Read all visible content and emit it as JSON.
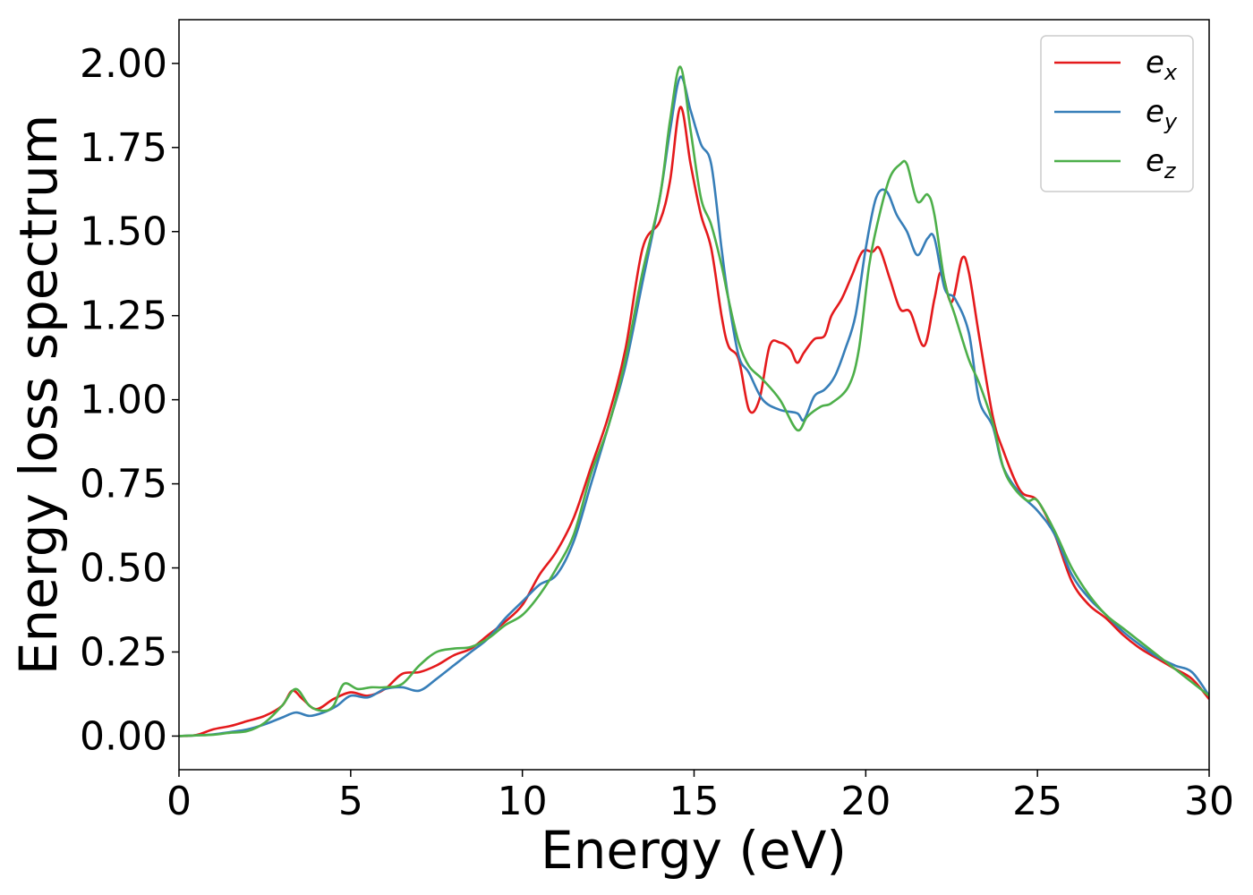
{
  "chart_data": {
    "type": "line",
    "title": "",
    "xlabel": "Energy (eV)",
    "ylabel": "Energy loss spectrum",
    "xlim": [
      0,
      30
    ],
    "ylim": [
      -0.1,
      2.13
    ],
    "xticks": [
      0,
      5,
      10,
      15,
      20,
      25,
      30
    ],
    "yticks": [
      0.0,
      0.25,
      0.5,
      0.75,
      1.0,
      1.25,
      1.5,
      1.75,
      2.0
    ],
    "xtick_labels": [
      "0",
      "5",
      "10",
      "15",
      "20",
      "25",
      "30"
    ],
    "ytick_labels": [
      "0.00",
      "0.25",
      "0.50",
      "0.75",
      "1.00",
      "1.25",
      "1.50",
      "1.75",
      "2.00"
    ],
    "grid": false,
    "legend_position": "top-right",
    "series": [
      {
        "name": "e",
        "sub": "x",
        "color": "#e41a1c",
        "points": [
          [
            0,
            0
          ],
          [
            0.5,
            0.003
          ],
          [
            1.0,
            0.02
          ],
          [
            1.5,
            0.03
          ],
          [
            2.0,
            0.045
          ],
          [
            2.5,
            0.06
          ],
          [
            3.0,
            0.09
          ],
          [
            3.3,
            0.135
          ],
          [
            3.6,
            0.11
          ],
          [
            4.0,
            0.08
          ],
          [
            4.5,
            0.11
          ],
          [
            5.0,
            0.13
          ],
          [
            5.5,
            0.12
          ],
          [
            6.0,
            0.14
          ],
          [
            6.5,
            0.185
          ],
          [
            7.0,
            0.19
          ],
          [
            7.5,
            0.21
          ],
          [
            8.0,
            0.24
          ],
          [
            8.5,
            0.26
          ],
          [
            9.0,
            0.3
          ],
          [
            9.5,
            0.34
          ],
          [
            10.0,
            0.39
          ],
          [
            10.5,
            0.48
          ],
          [
            11.0,
            0.55
          ],
          [
            11.5,
            0.65
          ],
          [
            12.0,
            0.8
          ],
          [
            12.5,
            0.95
          ],
          [
            13.0,
            1.15
          ],
          [
            13.5,
            1.45
          ],
          [
            14.0,
            1.53
          ],
          [
            14.3,
            1.65
          ],
          [
            14.6,
            1.87
          ],
          [
            14.9,
            1.7
          ],
          [
            15.2,
            1.55
          ],
          [
            15.5,
            1.45
          ],
          [
            15.8,
            1.25
          ],
          [
            16.0,
            1.16
          ],
          [
            16.3,
            1.12
          ],
          [
            16.6,
            0.97
          ],
          [
            16.9,
            1.0
          ],
          [
            17.2,
            1.16
          ],
          [
            17.5,
            1.17
          ],
          [
            17.8,
            1.15
          ],
          [
            18.0,
            1.11
          ],
          [
            18.2,
            1.14
          ],
          [
            18.5,
            1.18
          ],
          [
            18.8,
            1.19
          ],
          [
            19.0,
            1.25
          ],
          [
            19.3,
            1.3
          ],
          [
            19.6,
            1.37
          ],
          [
            19.9,
            1.44
          ],
          [
            20.2,
            1.44
          ],
          [
            20.4,
            1.45
          ],
          [
            20.7,
            1.36
          ],
          [
            21.0,
            1.27
          ],
          [
            21.3,
            1.26
          ],
          [
            21.7,
            1.16
          ],
          [
            22.0,
            1.3
          ],
          [
            22.2,
            1.38
          ],
          [
            22.5,
            1.29
          ],
          [
            22.8,
            1.42
          ],
          [
            23.0,
            1.38
          ],
          [
            23.3,
            1.19
          ],
          [
            23.7,
            0.95
          ],
          [
            24.0,
            0.85
          ],
          [
            24.5,
            0.73
          ],
          [
            25.0,
            0.7
          ],
          [
            25.5,
            0.6
          ],
          [
            26.0,
            0.46
          ],
          [
            26.5,
            0.39
          ],
          [
            27.0,
            0.35
          ],
          [
            27.5,
            0.3
          ],
          [
            28.0,
            0.26
          ],
          [
            28.5,
            0.23
          ],
          [
            29.0,
            0.2
          ],
          [
            29.5,
            0.17
          ],
          [
            30.0,
            0.11
          ]
        ]
      },
      {
        "name": "e",
        "sub": "y",
        "color": "#377eb8",
        "points": [
          [
            0,
            0
          ],
          [
            0.5,
            0.002
          ],
          [
            1.0,
            0.005
          ],
          [
            1.5,
            0.012
          ],
          [
            2.0,
            0.02
          ],
          [
            2.5,
            0.035
          ],
          [
            3.0,
            0.055
          ],
          [
            3.4,
            0.07
          ],
          [
            3.8,
            0.06
          ],
          [
            4.2,
            0.07
          ],
          [
            4.6,
            0.09
          ],
          [
            5.0,
            0.12
          ],
          [
            5.5,
            0.115
          ],
          [
            6.0,
            0.14
          ],
          [
            6.5,
            0.145
          ],
          [
            7.0,
            0.135
          ],
          [
            7.5,
            0.17
          ],
          [
            8.0,
            0.21
          ],
          [
            8.5,
            0.25
          ],
          [
            9.0,
            0.29
          ],
          [
            9.5,
            0.35
          ],
          [
            10.0,
            0.4
          ],
          [
            10.5,
            0.45
          ],
          [
            11.0,
            0.48
          ],
          [
            11.5,
            0.58
          ],
          [
            12.0,
            0.75
          ],
          [
            12.5,
            0.92
          ],
          [
            13.0,
            1.1
          ],
          [
            13.5,
            1.35
          ],
          [
            14.0,
            1.6
          ],
          [
            14.3,
            1.8
          ],
          [
            14.6,
            1.96
          ],
          [
            14.9,
            1.86
          ],
          [
            15.2,
            1.76
          ],
          [
            15.5,
            1.7
          ],
          [
            15.8,
            1.45
          ],
          [
            16.0,
            1.3
          ],
          [
            16.3,
            1.13
          ],
          [
            16.6,
            1.08
          ],
          [
            17.0,
            1.0
          ],
          [
            17.5,
            0.97
          ],
          [
            18.0,
            0.96
          ],
          [
            18.2,
            0.94
          ],
          [
            18.5,
            1.01
          ],
          [
            18.8,
            1.03
          ],
          [
            19.1,
            1.07
          ],
          [
            19.4,
            1.15
          ],
          [
            19.7,
            1.25
          ],
          [
            20.0,
            1.45
          ],
          [
            20.3,
            1.6
          ],
          [
            20.6,
            1.62
          ],
          [
            20.9,
            1.55
          ],
          [
            21.2,
            1.5
          ],
          [
            21.5,
            1.43
          ],
          [
            21.8,
            1.48
          ],
          [
            22.0,
            1.48
          ],
          [
            22.3,
            1.33
          ],
          [
            22.6,
            1.3
          ],
          [
            23.0,
            1.2
          ],
          [
            23.3,
            1.0
          ],
          [
            23.7,
            0.92
          ],
          [
            24.0,
            0.8
          ],
          [
            24.5,
            0.72
          ],
          [
            25.0,
            0.67
          ],
          [
            25.5,
            0.6
          ],
          [
            26.0,
            0.48
          ],
          [
            26.5,
            0.41
          ],
          [
            27.0,
            0.36
          ],
          [
            27.5,
            0.31
          ],
          [
            28.0,
            0.27
          ],
          [
            28.5,
            0.235
          ],
          [
            29.0,
            0.21
          ],
          [
            29.5,
            0.19
          ],
          [
            30.0,
            0.12
          ]
        ]
      },
      {
        "name": "e",
        "sub": "z",
        "color": "#4daf4a",
        "points": [
          [
            0,
            0
          ],
          [
            0.5,
            0.002
          ],
          [
            1.0,
            0.004
          ],
          [
            1.5,
            0.01
          ],
          [
            2.0,
            0.015
          ],
          [
            2.5,
            0.04
          ],
          [
            3.0,
            0.09
          ],
          [
            3.4,
            0.14
          ],
          [
            3.8,
            0.09
          ],
          [
            4.2,
            0.075
          ],
          [
            4.5,
            0.09
          ],
          [
            4.8,
            0.155
          ],
          [
            5.2,
            0.14
          ],
          [
            5.6,
            0.145
          ],
          [
            6.0,
            0.145
          ],
          [
            6.5,
            0.155
          ],
          [
            7.0,
            0.21
          ],
          [
            7.5,
            0.25
          ],
          [
            8.0,
            0.26
          ],
          [
            8.5,
            0.265
          ],
          [
            9.0,
            0.29
          ],
          [
            9.5,
            0.33
          ],
          [
            10.0,
            0.36
          ],
          [
            10.5,
            0.42
          ],
          [
            11.0,
            0.5
          ],
          [
            11.5,
            0.6
          ],
          [
            12.0,
            0.78
          ],
          [
            12.5,
            0.92
          ],
          [
            13.0,
            1.12
          ],
          [
            13.5,
            1.38
          ],
          [
            14.0,
            1.6
          ],
          [
            14.3,
            1.83
          ],
          [
            14.6,
            1.99
          ],
          [
            14.9,
            1.8
          ],
          [
            15.2,
            1.6
          ],
          [
            15.5,
            1.52
          ],
          [
            15.8,
            1.4
          ],
          [
            16.0,
            1.3
          ],
          [
            16.3,
            1.17
          ],
          [
            16.6,
            1.1
          ],
          [
            17.0,
            1.06
          ],
          [
            17.5,
            1.0
          ],
          [
            18.0,
            0.91
          ],
          [
            18.3,
            0.95
          ],
          [
            18.7,
            0.98
          ],
          [
            19.0,
            0.99
          ],
          [
            19.5,
            1.04
          ],
          [
            19.8,
            1.15
          ],
          [
            20.1,
            1.4
          ],
          [
            20.4,
            1.55
          ],
          [
            20.7,
            1.66
          ],
          [
            21.0,
            1.7
          ],
          [
            21.2,
            1.7
          ],
          [
            21.5,
            1.59
          ],
          [
            21.8,
            1.61
          ],
          [
            22.0,
            1.55
          ],
          [
            22.3,
            1.35
          ],
          [
            22.6,
            1.25
          ],
          [
            23.0,
            1.12
          ],
          [
            23.3,
            1.05
          ],
          [
            23.7,
            0.93
          ],
          [
            24.0,
            0.8
          ],
          [
            24.3,
            0.74
          ],
          [
            24.7,
            0.7
          ],
          [
            25.0,
            0.7
          ],
          [
            25.5,
            0.61
          ],
          [
            26.0,
            0.5
          ],
          [
            26.5,
            0.42
          ],
          [
            27.0,
            0.36
          ],
          [
            27.5,
            0.32
          ],
          [
            28.0,
            0.28
          ],
          [
            28.5,
            0.24
          ],
          [
            29.0,
            0.2
          ],
          [
            29.5,
            0.16
          ],
          [
            30.0,
            0.12
          ]
        ]
      }
    ]
  }
}
